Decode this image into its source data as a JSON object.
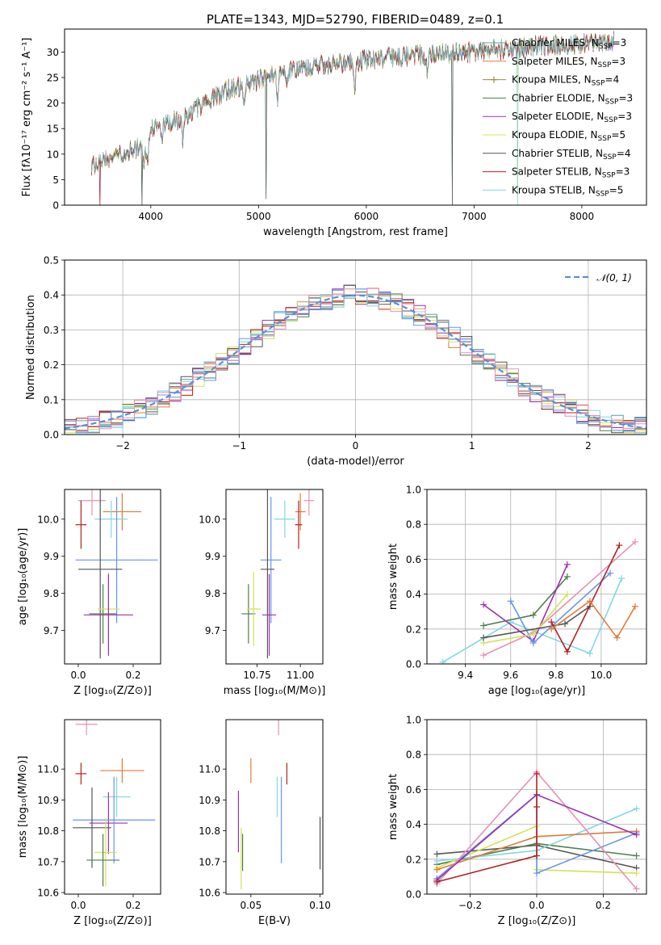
{
  "figure_title": "PLATE=1343, MJD=52790, FIBERID=0489, z=0.1",
  "palette": [
    "#5f9ea0",
    "#e07b39",
    "#a08c3c",
    "#4e7d4e",
    "#9b30b0",
    "#d4e157",
    "#555555",
    "#b22222",
    "#80d8e0",
    "#6495ed",
    "#e88fb4"
  ],
  "chart_data": [
    {
      "id": "spectrum",
      "type": "line",
      "title": "PLATE=1343, MJD=52790, FIBERID=0489, z=0.1",
      "xlabel": "wavelength [Angstrom, rest frame]",
      "ylabel": "Flux [fλ10⁻¹⁷ erg cm⁻² s⁻¹ A⁻¹]",
      "xlim": [
        3200,
        8600
      ],
      "ylim": [
        0,
        34.5
      ],
      "xticks": [
        4000,
        5000,
        6000,
        7000,
        8000
      ],
      "yticks": [
        0,
        5,
        10,
        15,
        20,
        25,
        30
      ],
      "grid": false,
      "legend_position": "top-right",
      "continuum": [
        [
          3450,
          7.8
        ],
        [
          3650,
          9
        ],
        [
          3800,
          10.5
        ],
        [
          3950,
          12
        ],
        [
          4000,
          15
        ],
        [
          4300,
          17
        ],
        [
          4500,
          20
        ],
        [
          4700,
          22.5
        ],
        [
          5000,
          24.5
        ],
        [
          5300,
          26.5
        ],
        [
          5800,
          28
        ],
        [
          6200,
          29
        ],
        [
          6600,
          29.5
        ],
        [
          7000,
          30
        ],
        [
          7500,
          31
        ],
        [
          8000,
          31.5
        ],
        [
          8300,
          32
        ]
      ],
      "absorption_lines": [
        [
          3934,
          4.0
        ],
        [
          3968,
          4.5
        ],
        [
          4102,
          3.0
        ],
        [
          4300,
          4.5
        ],
        [
          4861,
          4.0
        ],
        [
          5175,
          5.0
        ],
        [
          5270,
          2.5
        ],
        [
          5893,
          6.0
        ],
        [
          6563,
          3.0
        ]
      ],
      "spikes": [
        {
          "x": 3530,
          "y": 0
        },
        {
          "x": 3918,
          "y": 0
        },
        {
          "x": 5071,
          "y": 1.2
        },
        {
          "x": 6800,
          "y": 0
        },
        {
          "x": 7405,
          "y": 0
        }
      ],
      "series": [
        {
          "name": "Chabrier MILES, N<sub>SSP</sub>=3",
          "color": "#5f9ea0",
          "marker": "none"
        },
        {
          "name": "Salpeter MILES, N<sub>SSP</sub>=3",
          "color": "#e07b39",
          "marker": "none"
        },
        {
          "name": "Kroupa MILES, N<sub>SSP</sub>=4",
          "color": "#a08c3c",
          "marker": "plus"
        },
        {
          "name": "Chabrier ELODIE, N<sub>SSP</sub>=3",
          "color": "#4e7d4e",
          "marker": "none"
        },
        {
          "name": "Salpeter ELODIE, N<sub>SSP</sub>=3",
          "color": "#9b30b0",
          "marker": "none"
        },
        {
          "name": "Kroupa ELODIE, N<sub>SSP</sub>=5",
          "color": "#d4e157",
          "marker": "none"
        },
        {
          "name": "Chabrier STELIB, N<sub>SSP</sub>=4",
          "color": "#555555",
          "marker": "none"
        },
        {
          "name": "Salpeter STELIB, N<sub>SSP</sub>=3",
          "color": "#b22222",
          "marker": "none"
        },
        {
          "name": "Kroupa STELIB, N<sub>SSP</sub>=5",
          "color": "#80d8e0",
          "marker": "none"
        }
      ]
    },
    {
      "id": "residuals",
      "type": "step",
      "xlabel": "(data-model)/error",
      "ylabel": "Normed distribution",
      "xlim": [
        -2.5,
        2.5
      ],
      "ylim": [
        0,
        0.5
      ],
      "xticks": [
        -2,
        -1,
        0,
        1,
        2
      ],
      "xticklabels": [
        "−2",
        "−1",
        "0",
        "1",
        "2"
      ],
      "yticks": [
        0,
        0.1,
        0.2,
        0.3,
        0.4,
        0.5
      ],
      "yticklabels": [
        "0.0",
        "0.1",
        "0.2",
        "0.3",
        "0.4",
        "0.5"
      ],
      "grid": true,
      "legend_position": "top-right",
      "legend": [
        {
          "name": "𝒩(0, 1)",
          "color": "#5b8ed6",
          "dashed": true
        }
      ],
      "bin_width": 0.1,
      "series_colors": [
        "#5f9ea0",
        "#e07b39",
        "#4e7d4e",
        "#9b30b0",
        "#d4e157",
        "#555555",
        "#b22222",
        "#80d8e0",
        "#6495ed",
        "#e88fb4"
      ]
    },
    {
      "id": "age_vs_z",
      "type": "errorbar",
      "xlabel": "Z [log₁₀(Z/Z⊙)]",
      "ylabel": "age  [log₁₀(age/yr)]",
      "xlim": [
        -0.05,
        0.3
      ],
      "ylim": [
        9.61,
        10.08
      ],
      "xticks": [
        0,
        0.2
      ],
      "xticklabels": [
        "0.0",
        "0.2"
      ],
      "yticks": [
        9.7,
        9.8,
        9.9,
        10.0
      ],
      "yticklabels": [
        "9.7",
        "9.8",
        "9.9",
        "10.0"
      ],
      "grid": false,
      "points": [
        {
          "color": "#e88fb4",
          "x": 0.05,
          "xerr": 0.05,
          "y": 10.05,
          "yerr": 0.04
        },
        {
          "color": "#e07b39",
          "x": 0.16,
          "xerr": 0.07,
          "y": 10.02,
          "yerr": 0.05
        },
        {
          "color": "#b22222",
          "x": 0.01,
          "xerr": 0.02,
          "y": 9.985,
          "yerr": 0.065
        },
        {
          "color": "#80d8e0",
          "x": 0.12,
          "xerr": 0.06,
          "y": 10.0,
          "yerr": 0.05
        },
        {
          "color": "#6495ed",
          "x": 0.14,
          "xerr": 0.15,
          "y": 9.89,
          "yerr": 0.17
        },
        {
          "color": "#555555",
          "x": 0.08,
          "xerr": 0.08,
          "y": 9.865,
          "yerr": 0.24
        },
        {
          "color": "#4e7d4e",
          "x": 0.09,
          "xerr": 0.05,
          "y": 9.745,
          "yerr": 0.08
        },
        {
          "color": "#d4e157",
          "x": 0.11,
          "xerr": 0.04,
          "y": 9.758,
          "yerr": 0.1
        },
        {
          "color": "#9b30b0",
          "x": 0.11,
          "xerr": 0.09,
          "y": 9.742,
          "yerr": 0.11
        }
      ]
    },
    {
      "id": "age_vs_mass",
      "type": "errorbar",
      "xlabel": "mass [log₁₀(M/M⊙)]",
      "ylabel": "",
      "xlim": [
        10.57,
        11.13
      ],
      "ylim": [
        9.61,
        10.08
      ],
      "xticks": [
        10.75,
        11.0
      ],
      "xticklabels": [
        "10.75",
        "11.00"
      ],
      "yticks": [
        9.7,
        9.8,
        9.9,
        10.0
      ],
      "yticklabels": [
        "9.7",
        "9.8",
        "9.9",
        "10.0"
      ],
      "grid": false,
      "points": [
        {
          "color": "#e88fb4",
          "x": 11.05,
          "xerr": 0.03,
          "y": 10.05,
          "yerr": 0.04
        },
        {
          "color": "#e07b39",
          "x": 11.0,
          "xerr": 0.03,
          "y": 10.02,
          "yerr": 0.05
        },
        {
          "color": "#b22222",
          "x": 10.99,
          "xerr": 0.02,
          "y": 9.985,
          "yerr": 0.065
        },
        {
          "color": "#80d8e0",
          "x": 10.91,
          "xerr": 0.06,
          "y": 10.0,
          "yerr": 0.05
        },
        {
          "color": "#6495ed",
          "x": 10.83,
          "xerr": 0.06,
          "y": 9.89,
          "yerr": 0.17
        },
        {
          "color": "#555555",
          "x": 10.81,
          "xerr": 0.04,
          "y": 9.865,
          "yerr": 0.24
        },
        {
          "color": "#4e7d4e",
          "x": 10.7,
          "xerr": 0.04,
          "y": 9.745,
          "yerr": 0.08
        },
        {
          "color": "#d4e157",
          "x": 10.73,
          "xerr": 0.04,
          "y": 9.758,
          "yerr": 0.1
        },
        {
          "color": "#9b30b0",
          "x": 10.82,
          "xerr": 0.04,
          "y": 9.742,
          "yerr": 0.11
        }
      ]
    },
    {
      "id": "weight_vs_age",
      "type": "line",
      "xlabel": "age  [log₁₀(age/yr)]",
      "ylabel": "mass weight",
      "xlim": [
        9.23,
        10.2
      ],
      "ylim": [
        0,
        1
      ],
      "xticks": [
        9.4,
        9.6,
        9.8,
        10.0
      ],
      "xticklabels": [
        "9.4",
        "9.6",
        "9.8",
        "10.0"
      ],
      "yticks": [
        0,
        0.2,
        0.4,
        0.6,
        0.8,
        1.0
      ],
      "yticklabels": [
        "0.0",
        "0.2",
        "0.4",
        "0.6",
        "0.8",
        "1.0"
      ],
      "grid": true,
      "series": [
        {
          "color": "#80d8e0",
          "points": [
            [
              9.3,
              0.01
            ],
            [
              9.6,
              0.24
            ],
            [
              9.95,
              0.06
            ],
            [
              10.09,
              0.49
            ]
          ]
        },
        {
          "color": "#e88fb4",
          "points": [
            [
              9.48,
              0.05
            ],
            [
              9.7,
              0.18
            ],
            [
              10.15,
              0.7
            ]
          ]
        },
        {
          "color": "#4e7d4e",
          "points": [
            [
              9.48,
              0.22
            ],
            [
              9.7,
              0.28
            ],
            [
              9.85,
              0.5
            ]
          ]
        },
        {
          "color": "#9b30b0",
          "points": [
            [
              9.48,
              0.34
            ],
            [
              9.7,
              0.13
            ],
            [
              9.85,
              0.57
            ]
          ]
        },
        {
          "color": "#6495ed",
          "points": [
            [
              9.6,
              0.36
            ],
            [
              9.7,
              0.12
            ],
            [
              10.04,
              0.52
            ]
          ]
        },
        {
          "color": "#d4e157",
          "points": [
            [
              9.48,
              0.12
            ],
            [
              9.7,
              0.17
            ],
            [
              9.85,
              0.4
            ]
          ]
        },
        {
          "color": "#555555",
          "points": [
            [
              9.48,
              0.15
            ],
            [
              9.84,
              0.23
            ],
            [
              9.95,
              0.33
            ]
          ]
        },
        {
          "color": "#b22222",
          "points": [
            [
              9.78,
              0.24
            ],
            [
              9.85,
              0.07
            ],
            [
              10.08,
              0.68
            ]
          ]
        },
        {
          "color": "#e07b39",
          "points": [
            [
              9.78,
              0.2
            ],
            [
              9.95,
              0.36
            ],
            [
              10.07,
              0.15
            ],
            [
              10.15,
              0.33
            ]
          ]
        }
      ]
    },
    {
      "id": "mass_vs_z",
      "type": "errorbar",
      "xlabel": "Z [log₁₀(Z/Z⊙)]",
      "ylabel": "mass [log₁₀(M/M⊙)]",
      "xlim": [
        -0.05,
        0.3
      ],
      "ylim": [
        10.595,
        11.16
      ],
      "xticks": [
        0,
        0.2
      ],
      "xticklabels": [
        "0.0",
        "0.2"
      ],
      "yticks": [
        10.6,
        10.7,
        10.8,
        10.9,
        11.0
      ],
      "yticklabels": [
        "10.6",
        "10.7",
        "10.8",
        "10.9",
        "11.0"
      ],
      "grid": false,
      "points": [
        {
          "color": "#e88fb4",
          "x": 0.03,
          "xerr": 0.04,
          "y": 11.145,
          "yerr": 0.035
        },
        {
          "color": "#e07b39",
          "x": 0.16,
          "xerr": 0.08,
          "y": 10.995,
          "yerr": 0.04
        },
        {
          "color": "#b22222",
          "x": 0.01,
          "xerr": 0.02,
          "y": 10.985,
          "yerr": 0.035
        },
        {
          "color": "#80d8e0",
          "x": 0.14,
          "xerr": 0.05,
          "y": 10.91,
          "yerr": 0.065
        },
        {
          "color": "#9b30b0",
          "x": 0.11,
          "xerr": 0.07,
          "y": 10.825,
          "yerr": 0.1
        },
        {
          "color": "#6495ed",
          "x": 0.13,
          "xerr": 0.15,
          "y": 10.835,
          "yerr": 0.14
        },
        {
          "color": "#555555",
          "x": 0.05,
          "xerr": 0.07,
          "y": 10.81,
          "yerr": 0.13
        },
        {
          "color": "#d4e157",
          "x": 0.1,
          "xerr": 0.04,
          "y": 10.73,
          "yerr": 0.11
        },
        {
          "color": "#4e7d4e",
          "x": 0.09,
          "xerr": 0.06,
          "y": 10.705,
          "yerr": 0.085
        }
      ]
    },
    {
      "id": "mass_vs_ebv",
      "type": "errorbar",
      "xlabel": "E(B-V)",
      "ylabel": "",
      "xlim": [
        0.032,
        0.102
      ],
      "ylim": [
        10.595,
        11.16
      ],
      "xticks": [
        0.05,
        0.1
      ],
      "xticklabels": [
        "0.05",
        "0.10"
      ],
      "yticks": [
        10.6,
        10.7,
        10.8,
        10.9,
        11.0
      ],
      "yticklabels": [
        "10.6",
        "10.7",
        "10.8",
        "10.9",
        "11.0"
      ],
      "grid": false,
      "points": [
        {
          "color": "#e88fb4",
          "x": 0.07,
          "xerr": 0,
          "y": 11.145,
          "yerr": 0.035
        },
        {
          "color": "#e07b39",
          "x": 0.05,
          "xerr": 0,
          "y": 10.995,
          "yerr": 0.04
        },
        {
          "color": "#b22222",
          "x": 0.076,
          "xerr": 0,
          "y": 10.985,
          "yerr": 0.035
        },
        {
          "color": "#80d8e0",
          "x": 0.069,
          "xerr": 0,
          "y": 10.91,
          "yerr": 0.065
        },
        {
          "color": "#6495ed",
          "x": 0.072,
          "xerr": 0,
          "y": 10.835,
          "yerr": 0.14
        },
        {
          "color": "#9b30b0",
          "x": 0.041,
          "xerr": 0,
          "y": 10.83,
          "yerr": 0.1
        },
        {
          "color": "#d4e157",
          "x": 0.043,
          "xerr": 0,
          "y": 10.71,
          "yerr": 0.1
        },
        {
          "color": "#4e7d4e",
          "x": 0.044,
          "xerr": 0,
          "y": 10.73,
          "yerr": 0.06
        },
        {
          "color": "#555555",
          "x": 0.1,
          "xerr": 0,
          "y": 10.76,
          "yerr": 0.085
        }
      ]
    },
    {
      "id": "weight_vs_z",
      "type": "line",
      "xlabel": "Z [log₁₀(Z/Z⊙)]",
      "ylabel": "mass weight",
      "xlim": [
        -0.33,
        0.33
      ],
      "ylim": [
        0,
        1
      ],
      "xticks": [
        -0.2,
        0,
        0.2
      ],
      "xticklabels": [
        "−0.2",
        "0.0",
        "0.2"
      ],
      "yticks": [
        0,
        0.2,
        0.4,
        0.6,
        0.8,
        1.0
      ],
      "yticklabels": [
        "0.0",
        "0.2",
        "0.4",
        "0.6",
        "0.8",
        "1.0"
      ],
      "grid": true,
      "series": [
        {
          "color": "#555555",
          "points": [
            [
              -0.3,
              0.23
            ],
            [
              0,
              0.28
            ],
            [
              0.3,
              0.15
            ]
          ]
        },
        {
          "color": "#4e7d4e",
          "points": [
            [
              -0.3,
              0.17
            ],
            [
              0,
              0.29
            ],
            [
              0.3,
              0.22
            ]
          ]
        },
        {
          "color": "#80d8e0",
          "points": [
            [
              -0.3,
              0.19
            ],
            [
              0,
              0.25
            ],
            [
              0.3,
              0.49
            ]
          ]
        },
        {
          "color": "#d4e157",
          "points": [
            [
              -0.3,
              0.15
            ],
            [
              0,
              0.39
            ],
            [
              0,
              0.14
            ],
            [
              0.3,
              0.12
            ]
          ]
        },
        {
          "color": "#6495ed",
          "points": [
            [
              -0.3,
              0.09
            ],
            [
              0,
              0.57
            ],
            [
              0,
              0.12
            ],
            [
              0.3,
              0.35
            ]
          ]
        },
        {
          "color": "#e07b39",
          "points": [
            [
              -0.3,
              0.14
            ],
            [
              0,
              0.33
            ],
            [
              0.3,
              0.36
            ]
          ]
        },
        {
          "color": "#e88fb4",
          "points": [
            [
              -0.3,
              0.06
            ],
            [
              0,
              0.7
            ],
            [
              0.3,
              0.03
            ]
          ]
        },
        {
          "color": "#9b30b0",
          "points": [
            [
              -0.3,
              0.08
            ],
            [
              0,
              0.57
            ],
            [
              0.3,
              0.34
            ]
          ]
        },
        {
          "color": "#b22222",
          "points": [
            [
              -0.3,
              0.07
            ],
            [
              0,
              0.22
            ],
            [
              0,
              0.69
            ],
            [
              0,
              0.5
            ]
          ]
        }
      ]
    }
  ]
}
